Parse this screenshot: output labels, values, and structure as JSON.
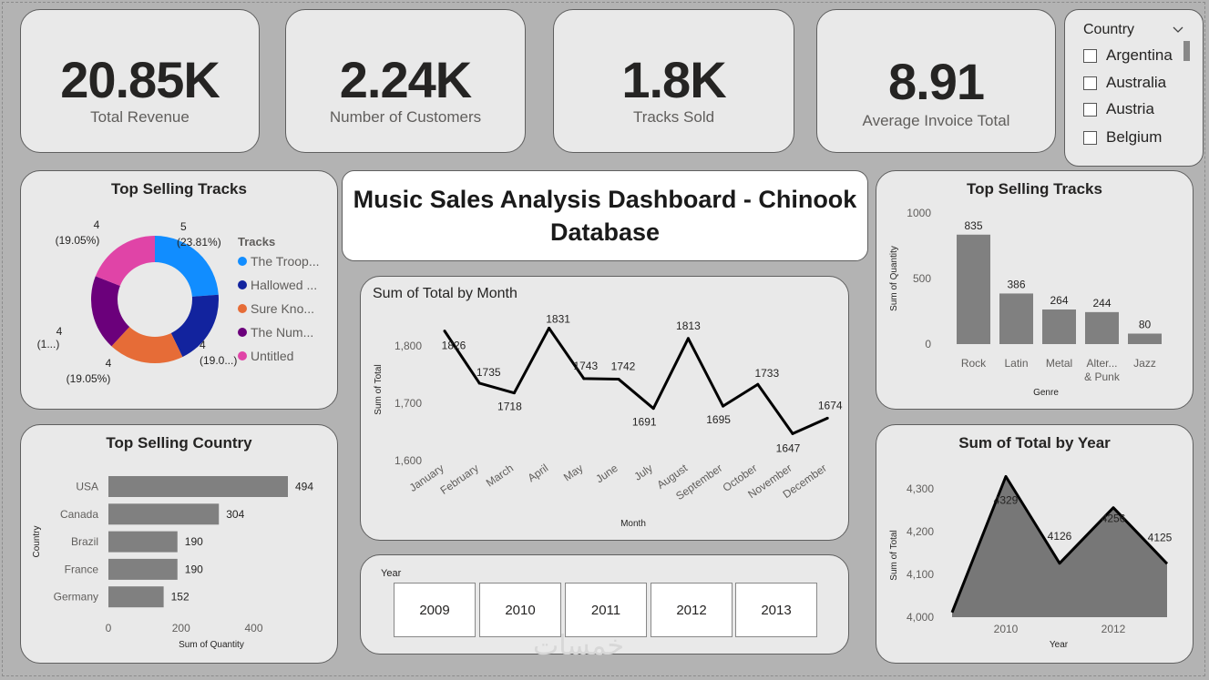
{
  "kpis": [
    {
      "value": "20.85K",
      "label": "Total Revenue"
    },
    {
      "value": "2.24K",
      "label": "Number of Customers"
    },
    {
      "value": "1.8K",
      "label": "Tracks Sold"
    },
    {
      "value": "8.91",
      "label": "Average Invoice Total"
    }
  ],
  "country_slicer": {
    "title": "Country",
    "items": [
      "Argentina",
      "Australia",
      "Austria",
      "Belgium"
    ]
  },
  "dashboard_title": "Music Sales Analysis Dashboard - Chinook Database",
  "year_slicer": {
    "title": "Year",
    "years": [
      "2009",
      "2010",
      "2011",
      "2012",
      "2013"
    ]
  },
  "watermark": "خمسات",
  "colors": {
    "bar": "#808080",
    "line": "#000000",
    "background": "#b3b3b3",
    "card": "#e9e9e9"
  },
  "chart_data": [
    {
      "id": "top-tracks-donut",
      "type": "pie",
      "title": "Top Selling Tracks",
      "legend_title": "Tracks",
      "slices": [
        {
          "name": "The Troop...",
          "value": 5,
          "label": "5",
          "pct": "(23.81%)",
          "color": "#118dff"
        },
        {
          "name": "Hallowed ...",
          "value": 4,
          "label": "4",
          "pct": "(19.0...)",
          "color": "#12239e"
        },
        {
          "name": "Sure Kno...",
          "value": 4,
          "label": "4",
          "pct": "(19.05%)",
          "color": "#e66c37"
        },
        {
          "name": "The Num...",
          "value": 4,
          "label": "4",
          "pct": "(1...)",
          "color": "#6b007b"
        },
        {
          "name": "Untitled",
          "value": 4,
          "label": "4",
          "pct": "(19.05%)",
          "color": "#e044a7"
        }
      ]
    },
    {
      "id": "month-line",
      "type": "line",
      "title": "Sum of Total by Month",
      "xlabel": "Month",
      "ylabel": "Sum of Total",
      "categories": [
        "January",
        "February",
        "March",
        "April",
        "May",
        "June",
        "July",
        "August",
        "September",
        "October",
        "November",
        "December"
      ],
      "values": [
        1826,
        1735,
        1718,
        1831,
        1743,
        1742,
        1691,
        1813,
        1695,
        1733,
        1647,
        1674
      ],
      "yticks": [
        1600,
        1700,
        1800
      ],
      "ytick_labels": [
        "1,600",
        "1,700",
        "1,800"
      ],
      "ylim": [
        1600,
        1850
      ]
    },
    {
      "id": "genre-bar",
      "type": "bar",
      "title": "Top Selling Tracks",
      "xlabel": "Genre",
      "ylabel": "Sum of Quantity",
      "categories": [
        "Rock",
        "Latin",
        "Metal",
        "Alter... & Punk",
        "Jazz"
      ],
      "values": [
        835,
        386,
        264,
        244,
        80
      ],
      "yticks": [
        0,
        500,
        1000
      ],
      "ylim": [
        0,
        1000
      ]
    },
    {
      "id": "country-bar",
      "type": "bar",
      "orientation": "horizontal",
      "title": "Top Selling Country",
      "xlabel": "Sum of Quantity",
      "ylabel": "Country",
      "categories": [
        "USA",
        "Canada",
        "Brazil",
        "France",
        "Germany"
      ],
      "values": [
        494,
        304,
        190,
        190,
        152
      ],
      "xticks": [
        0,
        200,
        400
      ],
      "xlim": [
        0,
        500
      ]
    },
    {
      "id": "year-area",
      "type": "area",
      "title": "Sum of Total by Year",
      "xlabel": "Year",
      "ylabel": "Sum of Total",
      "categories": [
        "2009",
        "2010",
        "2011",
        "2012",
        "2013"
      ],
      "values": [
        4011,
        4329,
        4126,
        4256,
        4125
      ],
      "data_labels": [
        "",
        "4329",
        "4126",
        "4256",
        "4125"
      ],
      "xtick_labels": [
        "",
        "2010",
        "",
        "2012",
        ""
      ],
      "yticks": [
        4000,
        4100,
        4200,
        4300
      ],
      "ytick_labels": [
        "4,000",
        "4,100",
        "4,200",
        "4,300"
      ],
      "ylim": [
        4000,
        4340
      ]
    }
  ]
}
